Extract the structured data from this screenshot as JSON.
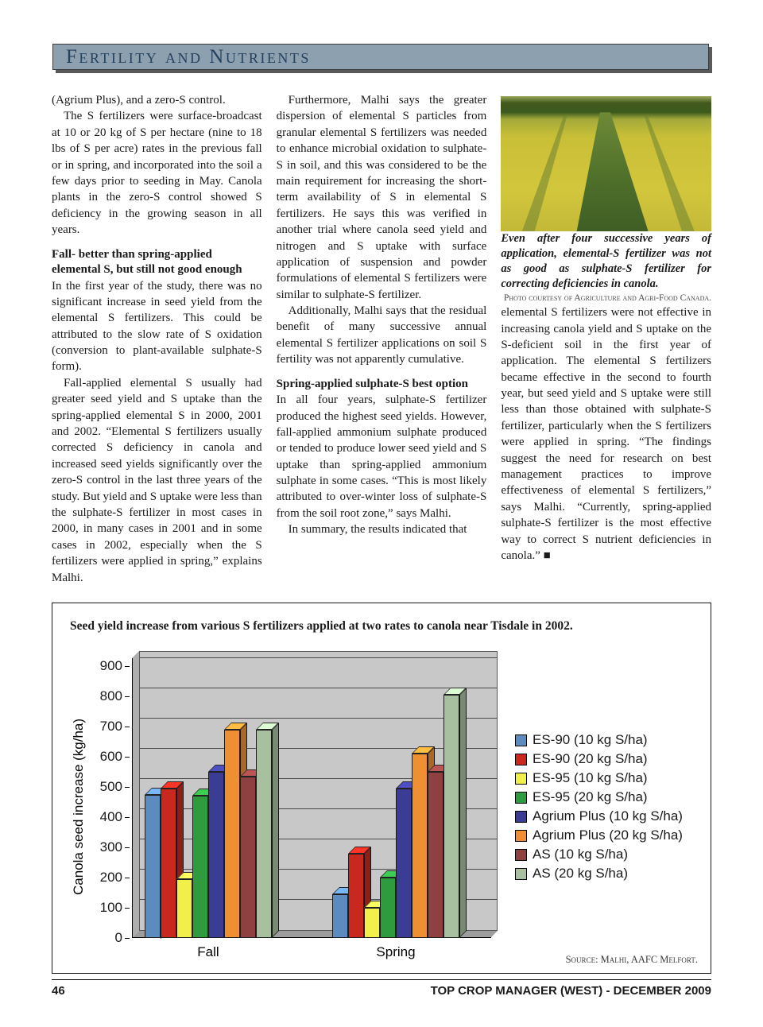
{
  "header": {
    "title": "Fertility and Nutrients"
  },
  "article": {
    "col1": {
      "p1": "(Agrium Plus), and a zero-S control.",
      "p2": "The S fertilizers were surface-broadcast at 10 or 20 kg of S per hectare (nine to 18 lbs of S per acre) rates in the previous fall or in spring, and incorporated into the soil a few days prior to seeding in May. Canola plants in the zero-S control showed S deficiency in the growing season in all years.",
      "h1": "Fall- better than spring-applied elemental S, but still not good enough",
      "p3": "In the first year of the study, there was no significant increase in seed yield from the elemental S fertilizers. This could be attributed to the slow rate of S oxidation (conversion to plant-available sulphate-S form).",
      "p4": "Fall-applied elemental S usually had greater seed yield and S uptake than the spring-applied elemental S in 2000, 2001 and 2002. “Elemental S fertilizers usually corrected S deficiency in canola and increased seed yields significantly over the zero-S control in the last three years of the study. But yield and S uptake were less than the sulphate-S fertilizer in most cases in 2000, in many cases in 2001 and in some cases in 2002, especially when the S fertilizers were applied in spring,” explains Malhi."
    },
    "col2": {
      "p1": "Furthermore, Malhi says the greater dispersion of elemental S particles from granular elemental S fertilizers was needed to enhance microbial oxidation to sulphate-S in soil, and this was considered to be the main requirement for increasing the short-term availability of S in elemental S fertilizers. He says this was verified in another trial where canola seed yield and nitrogen and S uptake with surface application of suspension and powder formulations of elemental S fertilizers were similar to sulphate-S fertilizer.",
      "p2": "Additionally, Malhi says that the residual benefit of many successive annual elemental S fertilizer applications on soil S fertility was not apparently cumulative.",
      "h1": "Spring-applied sulphate-S best option",
      "p3": "In all four years, sulphate-S fertilizer produced the highest seed yields. However, fall-applied ammonium sulphate produced or tended to produce lower seed yield and S uptake than spring-applied ammonium sulphate in some cases. “This is most likely attributed to over-winter loss of sulphate-S from the soil root zone,” says Malhi.",
      "p4": "In summary, the results indicated that"
    },
    "col3": {
      "p1": "elemental S fertilizers were not effective in increasing canola yield and S uptake on the S-deficient soil in the first year of application. The elemental S fertilizers became effective in the second to fourth year, but seed yield and S uptake were still less than those obtained with sulphate-S fertilizer, particularly when the S fertilizers were applied in spring. “The findings suggest the need for research on best management practices to improve effectiveness of elemental S fertilizers,” says Malhi. “Currently, spring-applied sulphate-S fertilizer is the most effective way to correct S nutrient deficiencies in canola.” ■"
    }
  },
  "photo": {
    "caption": "Even after four successive years of application, elemental-S fertilizer was not as good as sulphate-S fertilizer for correcting deficiencies in canola.",
    "credit": "Photo courtesy of Agriculture and Agri-Food Canada."
  },
  "chart_data": {
    "type": "bar",
    "title": "Seed yield increase from various S fertilizers applied at two rates to canola near Tisdale in 2002.",
    "ylabel": "Canola seed increase (kg/ha)",
    "xlabel": "",
    "ylim": [
      0,
      900
    ],
    "ytick": 100,
    "grid": true,
    "legend_position": "right",
    "source": "Source: Malhi, AAFC Melfort.",
    "categories": [
      "Fall",
      "Spring"
    ],
    "series": [
      {
        "name": "ES-90 (10 kg S/ha)",
        "color": "#5b8bbf",
        "values": [
          475,
          145
        ]
      },
      {
        "name": "ES-90 (20 kg S/ha)",
        "color": "#c8281e",
        "values": [
          495,
          280
        ]
      },
      {
        "name": "ES-95 (10 kg S/ha)",
        "color": "#f2ee4a",
        "values": [
          195,
          100
        ]
      },
      {
        "name": "ES-95 (20 kg S/ha)",
        "color": "#2e9b3f",
        "values": [
          470,
          200
        ]
      },
      {
        "name": "Agrium Plus (10 kg S/ha)",
        "color": "#3b3c94",
        "values": [
          550,
          495
        ]
      },
      {
        "name": "Agrium Plus (20 kg S/ha)",
        "color": "#ee8f33",
        "values": [
          690,
          610
        ]
      },
      {
        "name": "AS (10 kg S/ha)",
        "color": "#8e4140",
        "values": [
          535,
          550
        ]
      },
      {
        "name": "AS (20 kg S/ha)",
        "color": "#a8bfa0",
        "values": [
          690,
          805
        ]
      }
    ]
  },
  "footer": {
    "page_number": "46",
    "text": "TOP CROP MANAGER (WEST) - DECEMBER 2009"
  }
}
